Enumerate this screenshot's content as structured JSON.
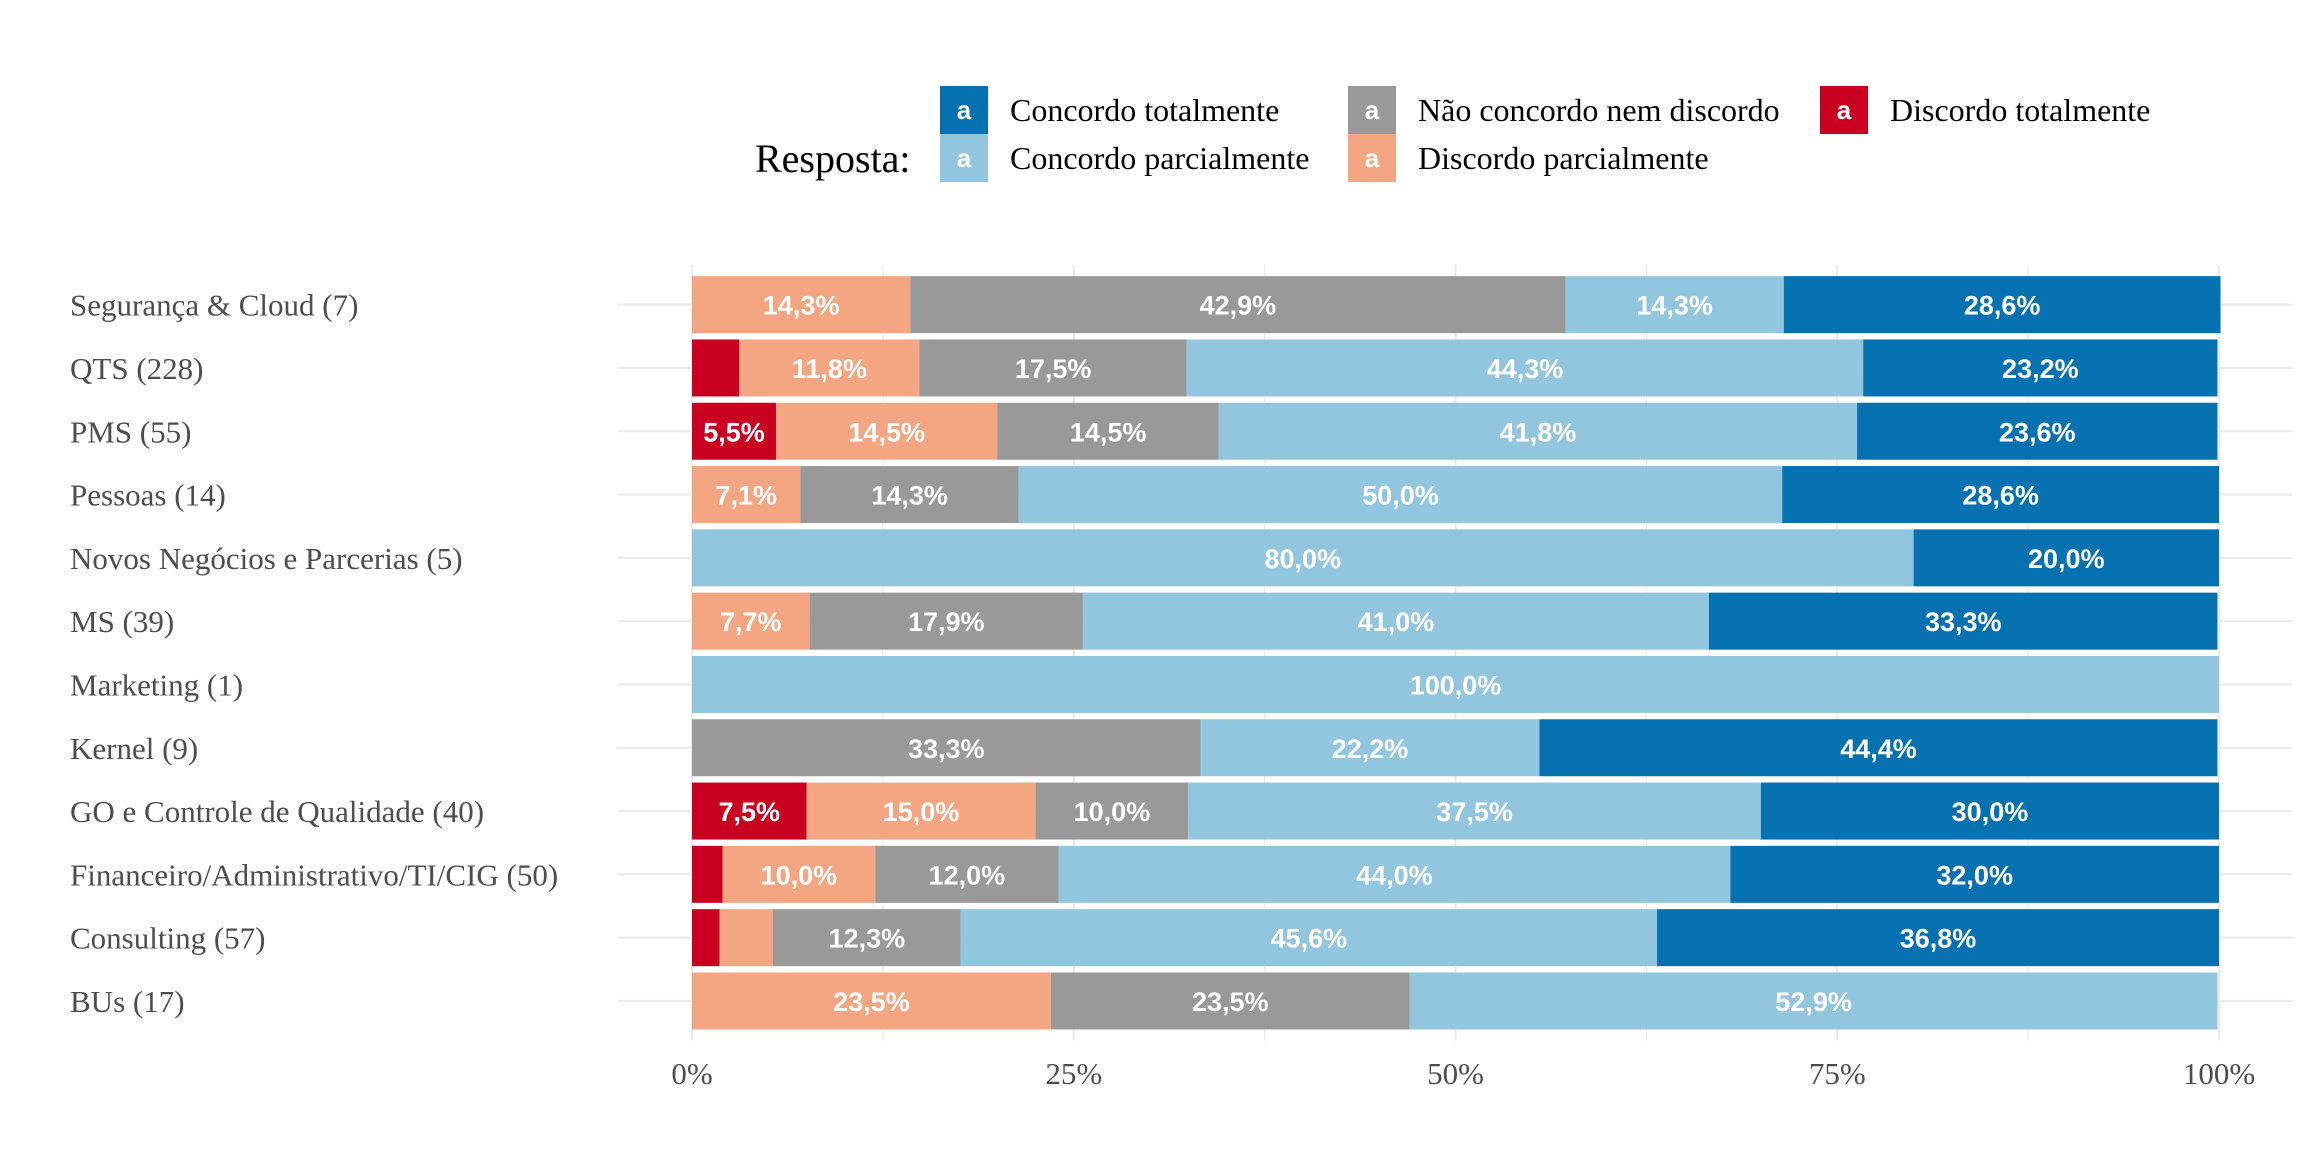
{
  "chart_data": {
    "type": "bar",
    "orientation": "horizontal",
    "stacked": "percent",
    "legend": {
      "title": "Resposta:",
      "placement": "top",
      "key_letter": "a",
      "entries": [
        {
          "name": "Concordo totalmente",
          "color": "#0571b0"
        },
        {
          "name": "Concordo parcialmente",
          "color": "#92c5de"
        },
        {
          "name": "Não concordo nem discordo",
          "color": "#999999"
        },
        {
          "name": "Discordo parcialmente",
          "color": "#f4a582"
        },
        {
          "name": "Discordo totalmente",
          "color": "#ca0020"
        }
      ]
    },
    "categories": [
      "Segurança & Cloud (7)",
      "QTS (228)",
      "PMS (55)",
      "Pessoas (14)",
      "Novos Negócios e Parcerias (5)",
      "MS (39)",
      "Marketing (1)",
      "Kernel (9)",
      "GO e Controle de Qualidade (40)",
      "Financeiro/Administrativo/TI/CIG (50)",
      "Consulting (57)",
      "BUs (17)"
    ],
    "stack_order": [
      "Discordo totalmente",
      "Discordo parcialmente",
      "Não concordo nem discordo",
      "Concordo parcialmente",
      "Concordo totalmente"
    ],
    "series": [
      {
        "name": "Discordo totalmente",
        "color": "#ca0020",
        "values": [
          0,
          3.1,
          5.5,
          0,
          0,
          0,
          0,
          0,
          7.5,
          2.0,
          1.8,
          0
        ],
        "labels": [
          "",
          "",
          "5,5%",
          "",
          "",
          "",
          "",
          "",
          "7,5%",
          "",
          "",
          ""
        ]
      },
      {
        "name": "Discordo parcialmente",
        "color": "#f4a582",
        "values": [
          14.3,
          11.8,
          14.5,
          7.1,
          0,
          7.7,
          0,
          0,
          15.0,
          10.0,
          3.5,
          23.5
        ],
        "labels": [
          "14,3%",
          "11,8%",
          "14,5%",
          "7,1%",
          "",
          "7,7%",
          "",
          "",
          "15,0%",
          "10,0%",
          "",
          "23,5%"
        ]
      },
      {
        "name": "Não concordo nem discordo",
        "color": "#999999",
        "values": [
          42.9,
          17.5,
          14.5,
          14.3,
          0,
          17.9,
          0,
          33.3,
          10.0,
          12.0,
          12.3,
          23.5
        ],
        "labels": [
          "42,9%",
          "17,5%",
          "14,5%",
          "14,3%",
          "",
          "17,9%",
          "",
          "33,3%",
          "10,0%",
          "12,0%",
          "12,3%",
          "23,5%"
        ]
      },
      {
        "name": "Concordo parcialmente",
        "color": "#92c5de",
        "values": [
          14.3,
          44.3,
          41.8,
          50.0,
          80.0,
          41.0,
          100.0,
          22.2,
          37.5,
          44.0,
          45.6,
          52.9
        ],
        "labels": [
          "14,3%",
          "44,3%",
          "41,8%",
          "50,0%",
          "80,0%",
          "41,0%",
          "100,0%",
          "22,2%",
          "37,5%",
          "44,0%",
          "45,6%",
          "52,9%"
        ]
      },
      {
        "name": "Concordo totalmente",
        "color": "#0571b0",
        "values": [
          28.6,
          23.2,
          23.6,
          28.6,
          20.0,
          33.3,
          0,
          44.4,
          30.0,
          32.0,
          36.8,
          0
        ],
        "labels": [
          "28,6%",
          "23,2%",
          "23,6%",
          "28,6%",
          "20,0%",
          "33,3%",
          "",
          "44,4%",
          "30,0%",
          "32,0%",
          "36,8%",
          ""
        ]
      }
    ],
    "xlim": [
      0,
      100
    ],
    "x_ticks": [
      {
        "value": 0,
        "label": "0%"
      },
      {
        "value": 25,
        "label": "25%"
      },
      {
        "value": 50,
        "label": "50%"
      },
      {
        "value": 75,
        "label": "75%"
      },
      {
        "value": 100,
        "label": "100%"
      }
    ],
    "grid": true,
    "xlabel": "",
    "ylabel": "",
    "title": ""
  }
}
